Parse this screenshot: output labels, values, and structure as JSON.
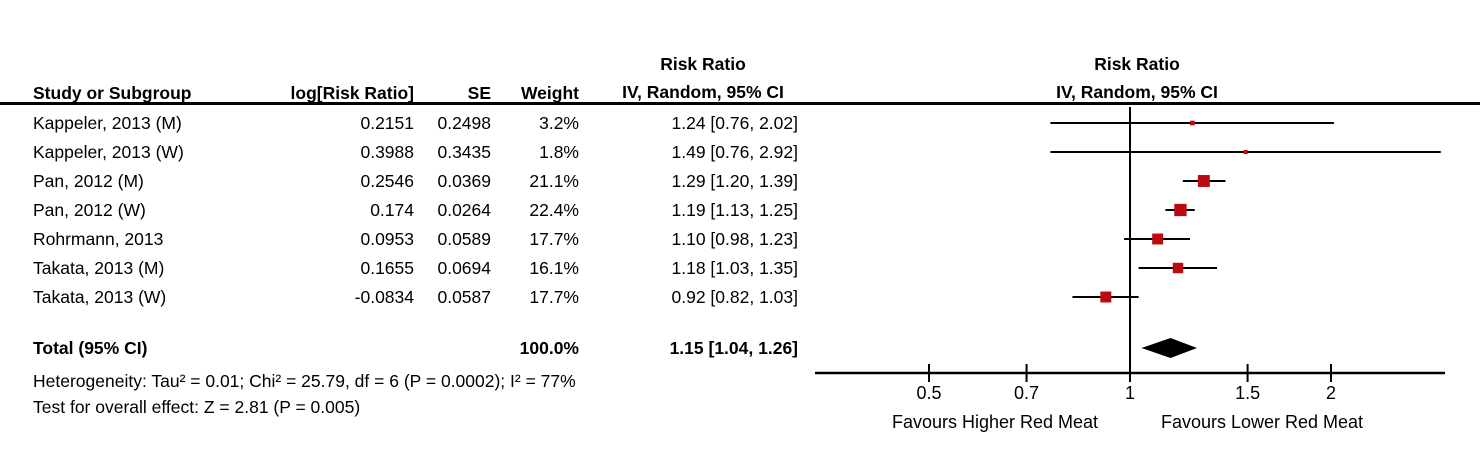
{
  "table": {
    "headers": {
      "study": "Study or Subgroup",
      "log_rr": "log[Risk Ratio]",
      "se": "SE",
      "weight": "Weight",
      "rr_line1": "Risk Ratio",
      "rr_line2": "IV, Random, 95% CI"
    },
    "plot_headers": {
      "line1": "Risk Ratio",
      "line2": "IV, Random, 95% CI"
    },
    "studies": [
      {
        "name": "Kappeler, 2013 (M)",
        "log_rr": "0.2151",
        "se": "0.2498",
        "weight": "3.2%",
        "rr_ci": "1.24 [0.76, 2.02]"
      },
      {
        "name": "Kappeler, 2013 (W)",
        "log_rr": "0.3988",
        "se": "0.3435",
        "weight": "1.8%",
        "rr_ci": "1.49 [0.76, 2.92]"
      },
      {
        "name": "Pan, 2012 (M)",
        "log_rr": "0.2546",
        "se": "0.0369",
        "weight": "21.1%",
        "rr_ci": "1.29 [1.20, 1.39]"
      },
      {
        "name": "Pan, 2012 (W)",
        "log_rr": "0.174",
        "se": "0.0264",
        "weight": "22.4%",
        "rr_ci": "1.19 [1.13, 1.25]"
      },
      {
        "name": "Rohrmann, 2013",
        "log_rr": "0.0953",
        "se": "0.0589",
        "weight": "17.7%",
        "rr_ci": "1.10 [0.98, 1.23]"
      },
      {
        "name": "Takata, 2013 (M)",
        "log_rr": "0.1655",
        "se": "0.0694",
        "weight": "16.1%",
        "rr_ci": "1.18 [1.03, 1.35]"
      },
      {
        "name": "Takata, 2013 (W)",
        "log_rr": "-0.0834",
        "se": "0.0587",
        "weight": "17.7%",
        "rr_ci": "0.92 [0.82, 1.03]"
      }
    ],
    "total": {
      "label": "Total (95% CI)",
      "weight": "100.0%",
      "rr_ci": "1.15 [1.04, 1.26]"
    },
    "heterogeneity": "Heterogeneity: Tau² = 0.01; Chi² = 25.79, df = 6 (P = 0.0002); I² = 77%",
    "overall_effect": "Test for overall effect: Z = 2.81 (P = 0.005)"
  },
  "chart_data": {
    "type": "forest",
    "x_scale": "log",
    "ref_line": 1,
    "axis_ticks": [
      0.5,
      0.7,
      1,
      1.5,
      2
    ],
    "tick_labels": [
      "0.5",
      "0.7",
      "1",
      "1.5",
      "2"
    ],
    "x_axis_labels": {
      "left": "Favours Higher Red Meat",
      "right": "Favours Lower Red Meat"
    },
    "studies": [
      {
        "name": "Kappeler, 2013 (M)",
        "rr": 1.24,
        "ci_low": 0.76,
        "ci_high": 2.02,
        "weight": 3.2
      },
      {
        "name": "Kappeler, 2013 (W)",
        "rr": 1.49,
        "ci_low": 0.76,
        "ci_high": 2.92,
        "weight": 1.8
      },
      {
        "name": "Pan, 2012 (M)",
        "rr": 1.29,
        "ci_low": 1.2,
        "ci_high": 1.39,
        "weight": 21.1
      },
      {
        "name": "Pan, 2012 (W)",
        "rr": 1.19,
        "ci_low": 1.13,
        "ci_high": 1.25,
        "weight": 22.4
      },
      {
        "name": "Rohrmann, 2013",
        "rr": 1.1,
        "ci_low": 0.98,
        "ci_high": 1.23,
        "weight": 17.7
      },
      {
        "name": "Takata, 2013 (M)",
        "rr": 1.18,
        "ci_low": 1.03,
        "ci_high": 1.35,
        "weight": 16.1
      },
      {
        "name": "Takata, 2013 (W)",
        "rr": 0.92,
        "ci_low": 0.82,
        "ci_high": 1.03,
        "weight": 17.7
      }
    ],
    "total": {
      "rr": 1.15,
      "ci_low": 1.04,
      "ci_high": 1.26
    },
    "marker_color": "#BB0A10",
    "diamond_color": "#000000",
    "line_color": "#000000"
  }
}
